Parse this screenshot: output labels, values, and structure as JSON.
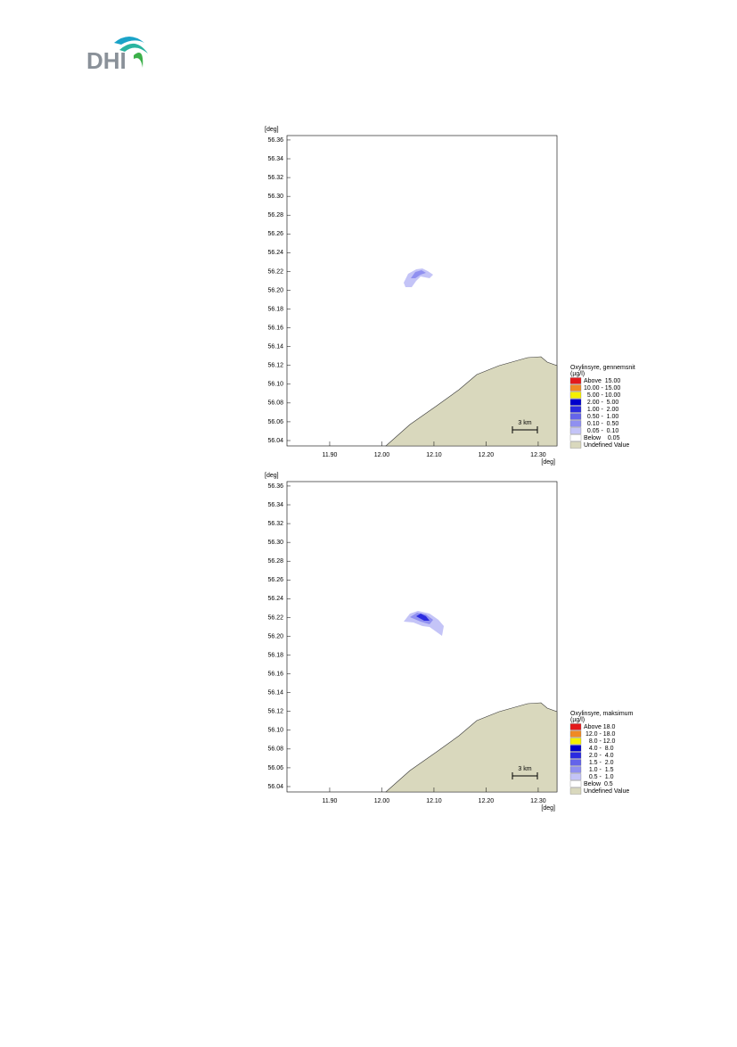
{
  "logo": {
    "text": "DHI"
  },
  "maps": [
    {
      "type": "contour_map",
      "y_label": "[deg]",
      "x_label": "[deg]",
      "xlim": [
        11.818,
        12.336
      ],
      "ylim": [
        56.0343,
        56.3647
      ],
      "xticks": [
        {
          "value": 11.9,
          "label": "11.90"
        },
        {
          "value": 12.0,
          "label": "12.00"
        },
        {
          "value": 12.1,
          "label": "12.10"
        },
        {
          "value": 12.2,
          "label": "12.20"
        },
        {
          "value": 12.3,
          "label": "12.30"
        }
      ],
      "yticks": [
        56.04,
        56.06,
        56.08,
        {
          "value": 56.1,
          "label": "56.10"
        },
        56.12,
        56.14,
        56.16,
        56.18,
        {
          "value": 56.2,
          "label": "56.20"
        },
        56.22,
        56.24,
        56.26,
        56.28,
        {
          "value": 56.3,
          "label": "56.30"
        },
        56.32,
        56.34,
        56.36
      ],
      "scale_bar": "3 km",
      "legend": {
        "title": "Oxylinsyre, gennemsnit",
        "unit": "(µg/l)",
        "items": [
          {
            "label": "Above  15.00",
            "color": "#e31a1c"
          },
          {
            "label": "10.00 - 15.00",
            "color": "#f08a24"
          },
          {
            "label": "  5.00 - 10.00",
            "color": "#f5f000"
          },
          {
            "label": "  2.00 -  5.00",
            "color": "#0000cc"
          },
          {
            "label": "  1.00 -  2.00",
            "color": "#2b2be0"
          },
          {
            "label": "  0.50 -  1.00",
            "color": "#6464ea"
          },
          {
            "label": "  0.10 -  0.50",
            "color": "#9090f0"
          },
          {
            "label": "  0.05 -  0.10",
            "color": "#c4c4f7"
          },
          {
            "label": "Below    0.05",
            "color": "#ffffff"
          },
          {
            "label": "Undefined Value",
            "color": "#d9d8bd"
          }
        ]
      }
    },
    {
      "type": "contour_map",
      "y_label": "[deg]",
      "x_label": "[deg]",
      "xlim": [
        11.818,
        12.336
      ],
      "ylim": [
        56.0343,
        56.3647
      ],
      "xticks": [
        {
          "value": 11.9,
          "label": "11.90"
        },
        {
          "value": 12.0,
          "label": "12.00"
        },
        {
          "value": 12.1,
          "label": "12.10"
        },
        {
          "value": 12.2,
          "label": "12.20"
        },
        {
          "value": 12.3,
          "label": "12.30"
        }
      ],
      "yticks": [
        56.04,
        56.06,
        56.08,
        {
          "value": 56.1,
          "label": "56.10"
        },
        56.12,
        56.14,
        56.16,
        56.18,
        {
          "value": 56.2,
          "label": "56.20"
        },
        56.22,
        56.24,
        56.26,
        56.28,
        {
          "value": 56.3,
          "label": "56.30"
        },
        56.32,
        56.34,
        56.36
      ],
      "scale_bar": "3 km",
      "legend": {
        "title": "Oxylinsyre, maksimum",
        "unit": "(µg/l)",
        "items": [
          {
            "label": "Above 18.0",
            "color": "#e31a1c"
          },
          {
            "label": " 12.0 - 18.0",
            "color": "#f08a24"
          },
          {
            "label": "   8.0 - 12.0",
            "color": "#f5f000"
          },
          {
            "label": "   4.0 -  8.0",
            "color": "#0000cc"
          },
          {
            "label": "   2.0 -  4.0",
            "color": "#2b2be0"
          },
          {
            "label": "   1.5 -  2.0",
            "color": "#6464ea"
          },
          {
            "label": "   1.0 -  1.5",
            "color": "#9090f0"
          },
          {
            "label": "   0.5 -  1.0",
            "color": "#c4c4f7"
          },
          {
            "label": "Below  0.5",
            "color": "#ffffff"
          },
          {
            "label": "Undefined Value",
            "color": "#d9d8bd"
          }
        ]
      }
    }
  ]
}
